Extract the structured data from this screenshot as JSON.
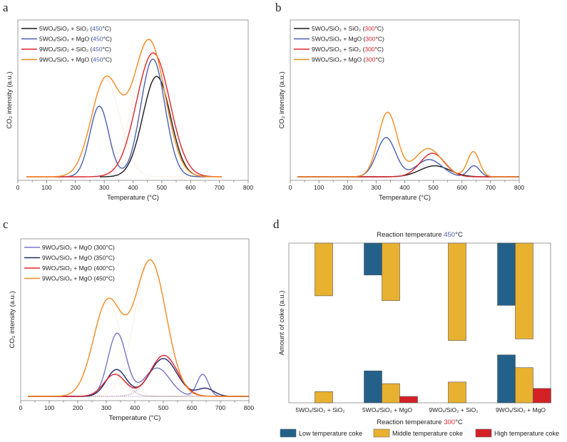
{
  "chart_data": [
    {
      "panel": "a",
      "type": "line",
      "xlabel": "Temperature (°C)",
      "ylabel": "CO₂ intensity (a.u.)",
      "xlim": [
        0,
        800
      ],
      "xticks": [
        0,
        100,
        200,
        300,
        400,
        500,
        600,
        700,
        800
      ],
      "ylim": [
        0,
        100
      ],
      "grid": false,
      "legend": "top-left",
      "highlight_color": "#4a5fb0",
      "series": [
        {
          "name": "5WOₓ/SiO₂ + SiO₂ (450°C)",
          "highlight": "450",
          "color": "#1a1a1a",
          "x_range": [
            285,
            670
          ],
          "peaks": [
            {
              "center": 482,
              "height": 64,
              "sigma": 48
            }
          ]
        },
        {
          "name": "5WOₓ/SiO₂ + MgO (450°C)",
          "highlight": "450",
          "color": "#4a5fb0",
          "x_range": [
            130,
            650
          ],
          "peaks": [
            {
              "center": 283,
              "height": 45,
              "sigma": 33
            },
            {
              "center": 469,
              "height": 75,
              "sigma": 42
            }
          ]
        },
        {
          "name": "9WOₓ/SiO₂ + SiO₂ (450°C)",
          "highlight": "450",
          "color": "#e0252b",
          "x_range": [
            30,
            708
          ],
          "peaks": [
            {
              "center": 470,
              "height": 79,
              "sigma": 58
            }
          ]
        },
        {
          "name": "9WOₓ/SiO₂ + MgO (450°C)",
          "highlight": "450",
          "color": "#f28a22",
          "x_range": [
            30,
            708
          ],
          "components": true,
          "peaks": [
            {
              "center": 305,
              "height": 62,
              "sigma": 50
            },
            {
              "center": 456,
              "height": 87,
              "sigma": 55
            }
          ]
        }
      ]
    },
    {
      "panel": "b",
      "type": "line",
      "xlabel": "Temperature (°C)",
      "ylabel": "CO₂ intensity (a.u.)",
      "xlim": [
        0,
        800
      ],
      "xticks": [
        0,
        100,
        200,
        300,
        400,
        500,
        600,
        700,
        800
      ],
      "ylim": [
        0,
        100
      ],
      "grid": false,
      "legend": "top-left",
      "highlight_color": "#e0252b",
      "series": [
        {
          "name": "5WOₓ/SiO₂ + SiO₂ (300°C)",
          "highlight": "300",
          "color": "#1a1a1a",
          "x_range": [
            25,
            800
          ],
          "peaks": [
            {
              "center": 505,
              "height": 7,
              "sigma": 52
            }
          ]
        },
        {
          "name": "5WOₓ/SiO₂ + MgO (300°C)",
          "highlight": "300",
          "color": "#4a5fb0",
          "x_range": [
            25,
            800
          ],
          "peaks": [
            {
              "center": 335,
              "height": 25,
              "sigma": 33
            },
            {
              "center": 485,
              "height": 11,
              "sigma": 45
            },
            {
              "center": 642,
              "height": 7,
              "sigma": 20
            }
          ]
        },
        {
          "name": "9WOₓ/SiO₂ + SiO₂ (300°C)",
          "highlight": "300",
          "color": "#e0252b",
          "x_range": [
            25,
            800
          ],
          "peaks": [
            {
              "center": 497,
              "height": 15,
              "sigma": 43
            }
          ]
        },
        {
          "name": "9WOₓ/SiO₂ + MgO (300°C)",
          "highlight": "300",
          "color": "#f28a22",
          "x_range": [
            25,
            800
          ],
          "peaks": [
            {
              "center": 340,
              "height": 41,
              "sigma": 33
            },
            {
              "center": 482,
              "height": 18,
              "sigma": 48
            },
            {
              "center": 640,
              "height": 16,
              "sigma": 21
            }
          ]
        }
      ]
    },
    {
      "panel": "c",
      "type": "line",
      "xlabel": "Temperature (°C)",
      "ylabel": "CO₂ intensity (a.u.)",
      "xlim": [
        0,
        800
      ],
      "xticks": [
        0,
        100,
        200,
        300,
        400,
        500,
        600,
        700,
        800
      ],
      "ylim": [
        0,
        100
      ],
      "grid": false,
      "legend": "top-left",
      "highlight_color": "",
      "series": [
        {
          "name": "9WOₓ/SiO₂ + MgO (300°C)",
          "highlight": "",
          "color": "#7479c8",
          "x_range": [
            25,
            800
          ],
          "components": true,
          "peaks": [
            {
              "center": 338,
              "height": 40,
              "sigma": 32
            },
            {
              "center": 478,
              "height": 18,
              "sigma": 45
            },
            {
              "center": 638,
              "height": 14,
              "sigma": 20
            }
          ]
        },
        {
          "name": "9WOₓ/SiO₂ + MgO (350°C)",
          "highlight": "",
          "color": "#232a6b",
          "x_range": [
            25,
            800
          ],
          "components": true,
          "peaks": [
            {
              "center": 336,
              "height": 17,
              "sigma": 35
            },
            {
              "center": 500,
              "height": 24,
              "sigma": 48
            },
            {
              "center": 648,
              "height": 5,
              "sigma": 30
            }
          ]
        },
        {
          "name": "9WOₓ/SiO₂ + MgO (400°C)",
          "highlight": "",
          "color": "#e0252b",
          "x_range": [
            25,
            800
          ],
          "components": true,
          "peaks": [
            {
              "center": 330,
              "height": 14,
              "sigma": 38
            },
            {
              "center": 502,
              "height": 26,
              "sigma": 48
            }
          ]
        },
        {
          "name": "9WOₓ/SiO₂ + MgO (450°C)",
          "highlight": "",
          "color": "#f28a22",
          "x_range": [
            25,
            800
          ],
          "components": true,
          "peaks": [
            {
              "center": 305,
              "height": 60,
              "sigma": 50
            },
            {
              "center": 455,
              "height": 86,
              "sigma": 55
            }
          ]
        }
      ]
    },
    {
      "panel": "d",
      "type": "bar",
      "ylabel": "Amount of coke (a.u.)",
      "top_title": {
        "prefix": "Reaction temperature ",
        "temp": "450",
        "suffix": "°C",
        "temp_color": "#4a5fb0"
      },
      "bottom_title": {
        "prefix": "Reaction temperature ",
        "temp": "300",
        "suffix": "°C",
        "temp_color": "#e0252b"
      },
      "categories": [
        "5WOₓ/SiO₂ + SiO₂",
        "5WOₓ/SiO₂ + MgO",
        "9WOₓ/SiO₂ + SiO₂",
        "9WOₓ/SiO₂ + MgO"
      ],
      "ylim": [
        0,
        100
      ],
      "legend": "bottom",
      "series": [
        {
          "name": "Low temperature coke",
          "color": "#23618a",
          "values_450C": [
            0,
            20,
            0,
            39
          ],
          "values_300C": [
            0,
            20,
            0,
            30
          ]
        },
        {
          "name": "Middle temperature coke",
          "color": "#e8b130",
          "values_450C": [
            33,
            36,
            61,
            60
          ],
          "values_300C": [
            7,
            12,
            13,
            22
          ]
        },
        {
          "name": "High temperature coke",
          "color": "#d42027",
          "values_450C": [
            0,
            0,
            0,
            0
          ],
          "values_300C": [
            0,
            4,
            0,
            9
          ]
        }
      ]
    }
  ]
}
